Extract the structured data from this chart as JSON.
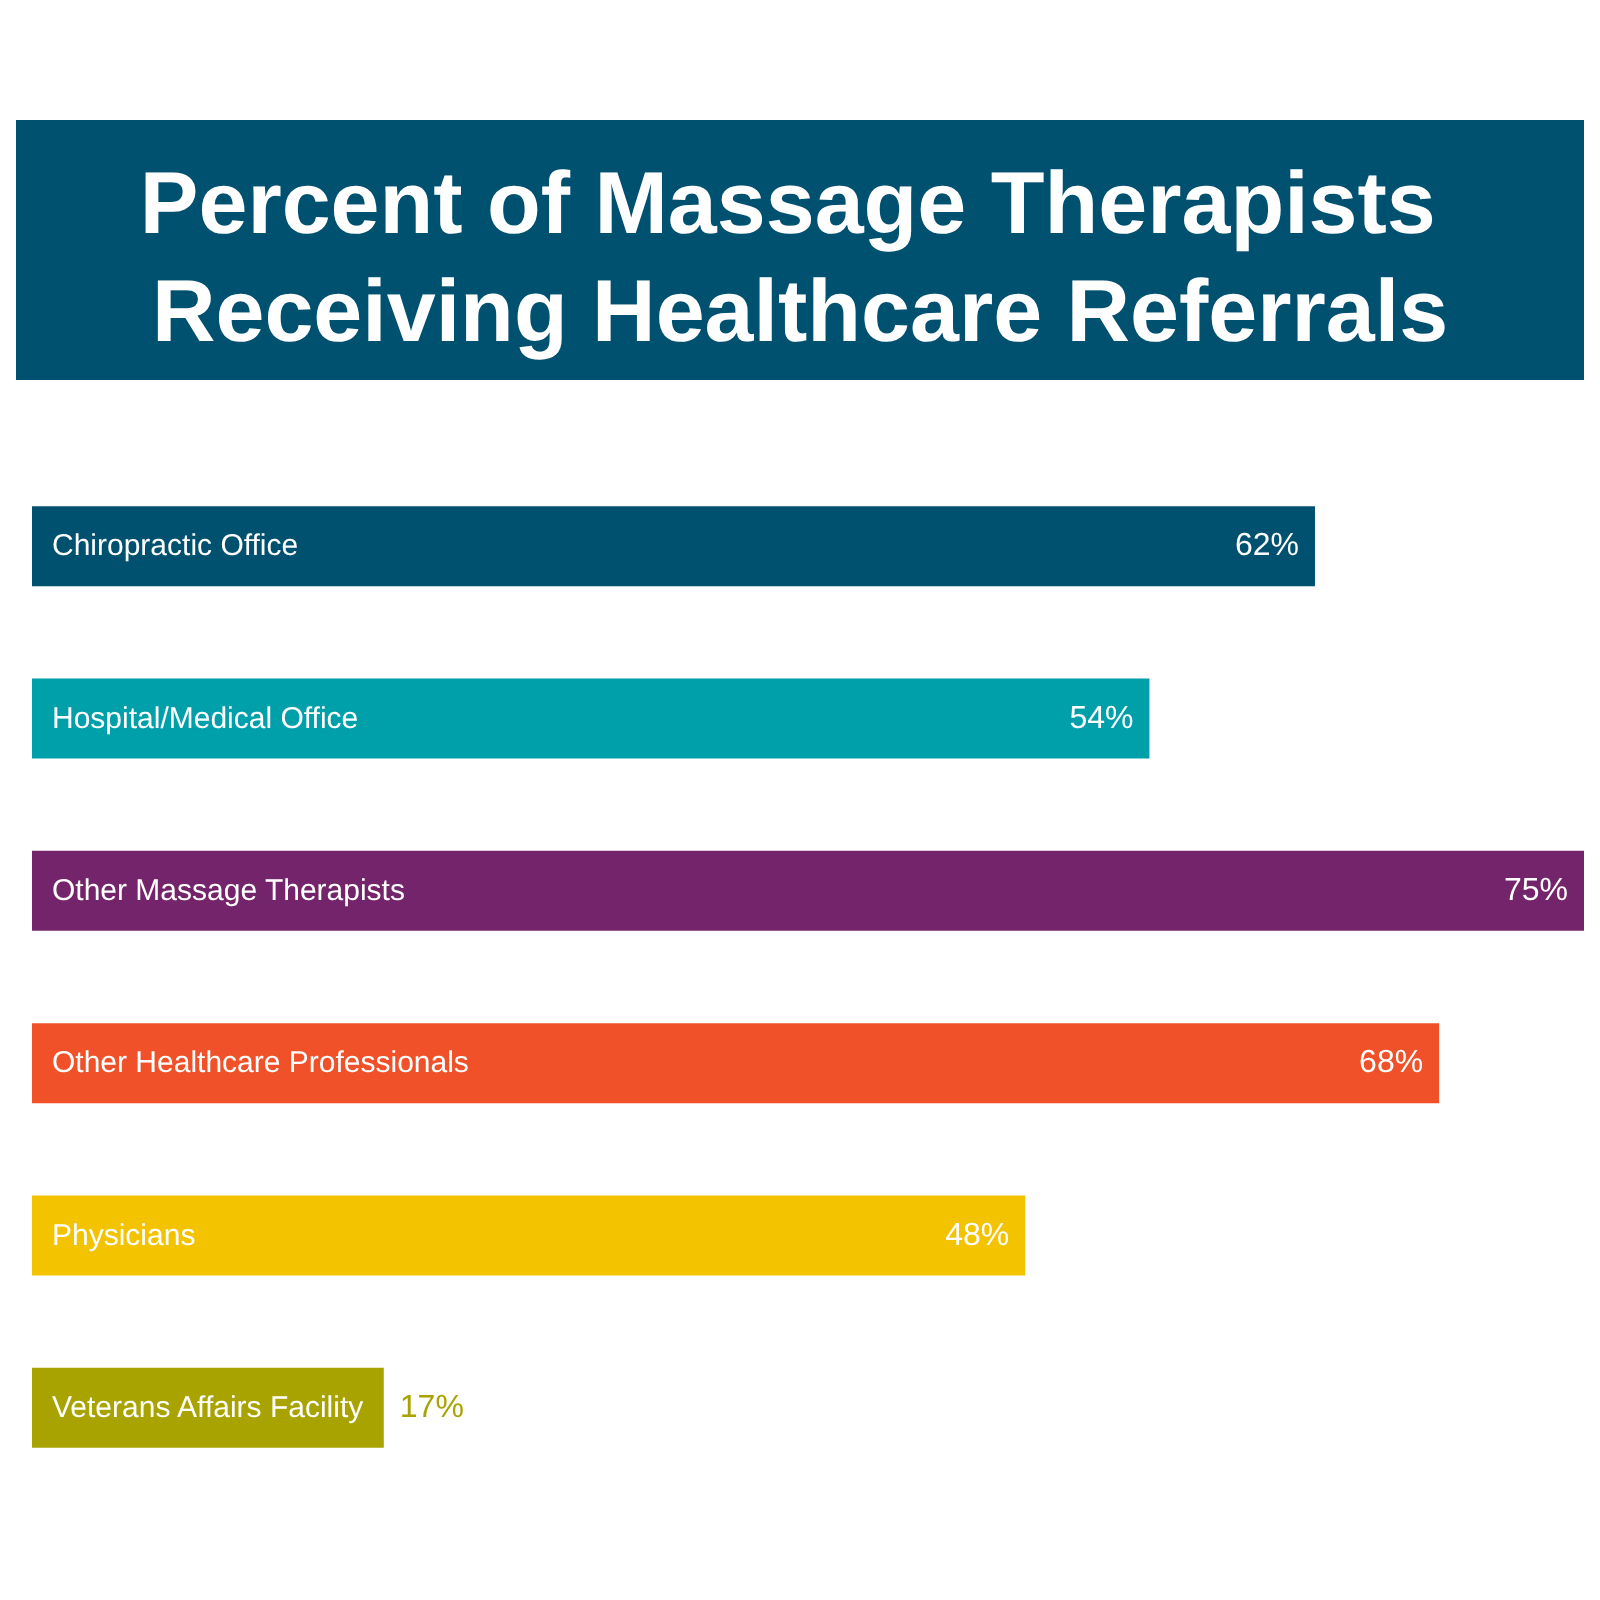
{
  "chart_data": {
    "type": "bar",
    "orientation": "horizontal",
    "title": "Percent of Massage Therapists Receiving Healthcare Referrals",
    "categories": [
      "Chiropractic Office",
      "Hospital/Medical Office",
      "Other Massage Therapists",
      "Other Healthcare Professionals",
      "Physicians",
      "Veterans Affairs Facility"
    ],
    "values": [
      62,
      54,
      75,
      68,
      48,
      17
    ],
    "value_labels": [
      "62%",
      "54%",
      "75%",
      "68%",
      "48%",
      "17%"
    ],
    "colors": [
      "#00506f",
      "#00a0ab",
      "#74246b",
      "#f05128",
      "#f4c300",
      "#a9a300"
    ],
    "xlim": [
      0,
      75
    ],
    "tick_labels": false,
    "grid": false
  }
}
